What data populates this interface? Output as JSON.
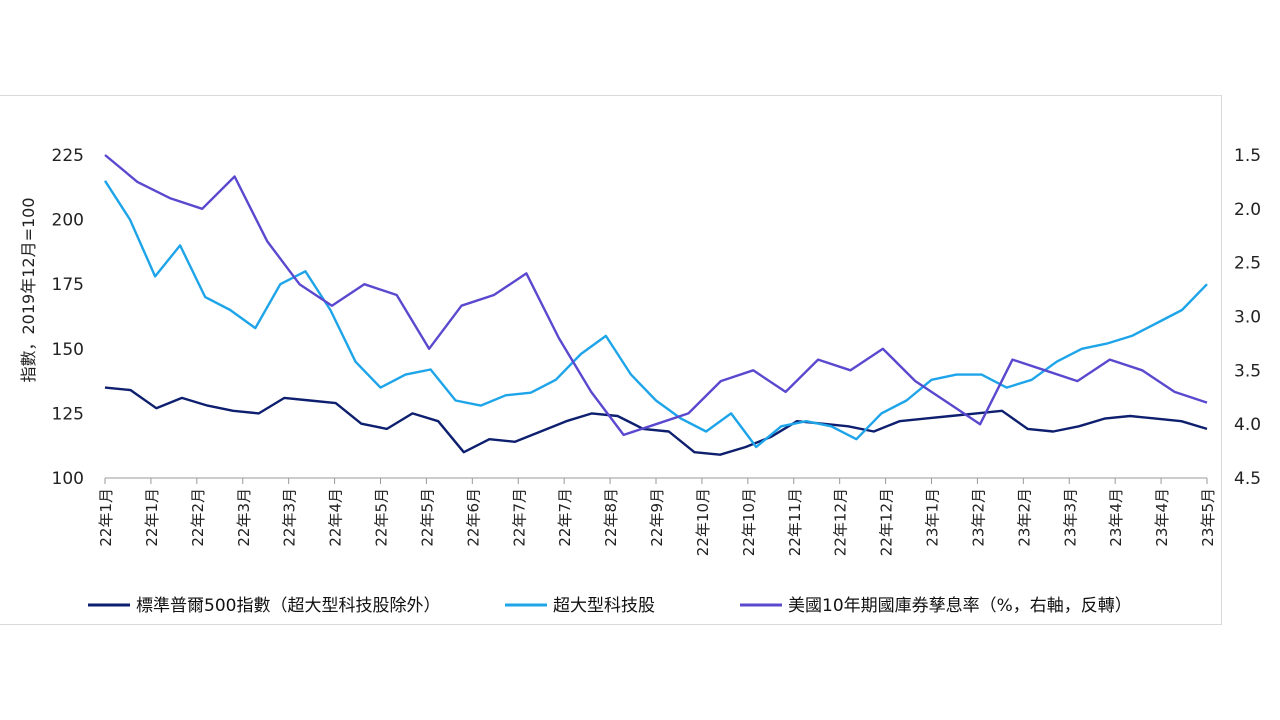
{
  "chart_data": {
    "type": "line",
    "ylabel": "指數，2019年12月=100",
    "y_left": {
      "ticks": [
        100,
        125,
        150,
        175,
        200,
        225
      ],
      "range": [
        100,
        225
      ]
    },
    "y_right": {
      "ticks": [
        "1.5",
        "2.0",
        "2.5",
        "3.0",
        "3.5",
        "4.0",
        "4.5"
      ],
      "range": [
        1.5,
        4.5
      ],
      "inverted": true
    },
    "x_ticks": [
      "22年1月",
      "22年1月",
      "22年2月",
      "22年3月",
      "22年3月",
      "22年4月",
      "22年5月",
      "22年5月",
      "22年6月",
      "22年7月",
      "22年7月",
      "22年8月",
      "22年9月",
      "22年10月",
      "22年10月",
      "22年11月",
      "22年12月",
      "22年12月",
      "23年1月",
      "23年2月",
      "23年2月",
      "23年3月",
      "23年4月",
      "23年4月",
      "23年5月"
    ],
    "grid": false,
    "legend_position": "bottom",
    "series": [
      {
        "name": "標準普爾500指數（超大型科技股除外）",
        "axis": "left",
        "color": "#0d1f6e",
        "values": [
          135,
          134,
          127,
          131,
          128,
          126,
          125,
          131,
          130,
          129,
          121,
          119,
          125,
          122,
          110,
          115,
          114,
          118,
          122,
          125,
          124,
          119,
          118,
          110,
          109,
          112,
          116,
          122,
          121,
          120,
          118,
          122,
          123,
          124,
          125,
          126,
          119,
          118,
          120,
          123,
          124,
          123,
          122,
          119
        ]
      },
      {
        "name": "超大型科技股",
        "axis": "left",
        "color": "#1ea4e9",
        "values": [
          215,
          200,
          178,
          190,
          170,
          165,
          158,
          175,
          180,
          165,
          145,
          135,
          140,
          142,
          130,
          128,
          132,
          133,
          138,
          148,
          155,
          140,
          130,
          123,
          118,
          125,
          112,
          120,
          122,
          120,
          115,
          125,
          130,
          138,
          140,
          140,
          135,
          138,
          145,
          150,
          152,
          155,
          160,
          165,
          175
        ]
      },
      {
        "name": "美國10年期國庫券孳息率（%，右軸，反轉）",
        "axis": "right",
        "color": "#5a49cf",
        "values": [
          1.5,
          1.75,
          1.9,
          2.0,
          1.7,
          2.3,
          2.7,
          2.9,
          2.7,
          2.8,
          3.3,
          2.9,
          2.8,
          2.6,
          3.2,
          3.7,
          4.1,
          4.0,
          3.9,
          3.6,
          3.5,
          3.7,
          3.4,
          3.5,
          3.3,
          3.6,
          3.8,
          4.0,
          3.4,
          3.5,
          3.6,
          3.4,
          3.5,
          3.7,
          3.8
        ]
      }
    ]
  }
}
